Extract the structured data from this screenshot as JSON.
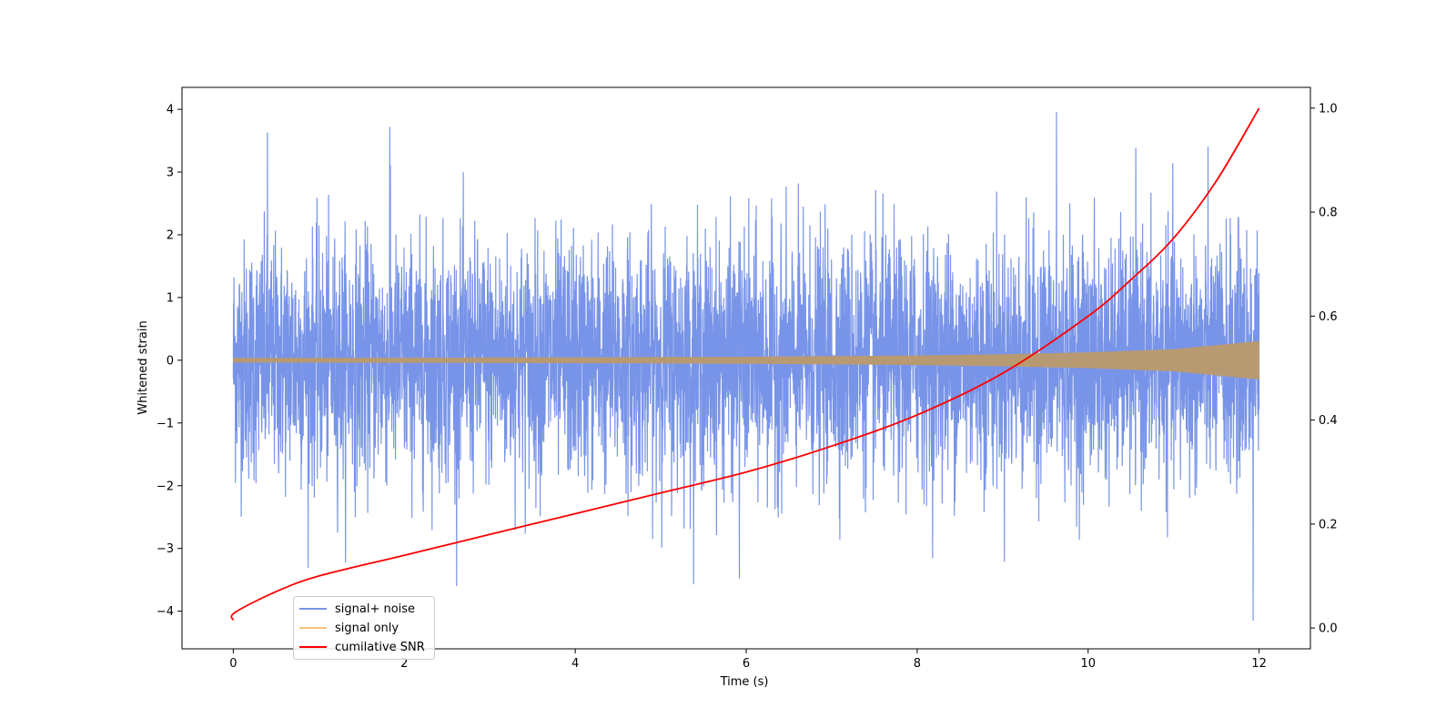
{
  "chart_data": {
    "type": "line",
    "title": "",
    "xlabel": "Time (s)",
    "ylabel": "Whitened strain",
    "xlim": [
      -0.6,
      12.6
    ],
    "ylim": [
      -4.6,
      4.35
    ],
    "y2lim": [
      -0.04,
      1.04
    ],
    "xticks": [
      0,
      2,
      4,
      6,
      8,
      10,
      12
    ],
    "yticks": [
      -4,
      -3,
      -2,
      -1,
      0,
      1,
      2,
      3,
      4
    ],
    "y2ticks": [
      "0.0",
      "0.2",
      "0.4",
      "0.6",
      "0.8",
      "1.0"
    ],
    "grid": false,
    "legend_position": "lower-left",
    "series": [
      {
        "name": "signal+ noise",
        "color": "#7894e8",
        "axis": "left",
        "description_of_range": "noise fluctuating roughly between -3.5 and 4",
        "sample_extremes": {
          "x": [
            0.4,
            1.83,
            9.63,
            11.93,
            5.92
          ],
          "y": [
            3.63,
            3.72,
            3.96,
            -4.15,
            -3.48
          ]
        }
      },
      {
        "name": "signal only",
        "color": "#f5c27a",
        "axis": "left",
        "envelope": {
          "x": [
            0,
            2,
            4,
            6,
            8,
            9,
            10,
            11,
            12
          ],
          "amplitude": [
            0.03,
            0.035,
            0.04,
            0.05,
            0.07,
            0.09,
            0.12,
            0.17,
            0.3
          ]
        }
      },
      {
        "name": "cumilative SNR",
        "color": "#ff0000",
        "axis": "right",
        "x": [
          0,
          0.02,
          0.5,
          1,
          2,
          3,
          4,
          5,
          6,
          7,
          8,
          9,
          10,
          10.5,
          11,
          11.5,
          12
        ],
        "y": [
          0.015,
          0.03,
          0.07,
          0.1,
          0.14,
          0.18,
          0.22,
          0.26,
          0.3,
          0.35,
          0.41,
          0.49,
          0.6,
          0.67,
          0.75,
          0.86,
          1.0
        ]
      }
    ]
  }
}
